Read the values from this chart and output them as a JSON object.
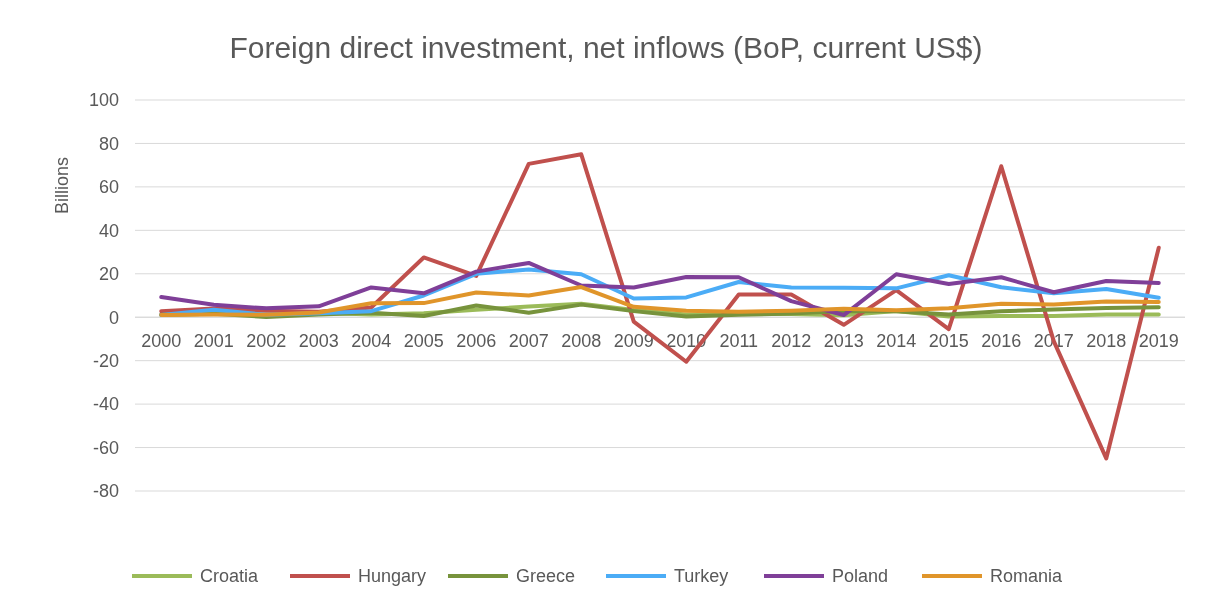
{
  "chart_data": {
    "type": "line",
    "title": "Foreign direct investment, net inflows (BoP, current US$)",
    "ylabel": "Billions",
    "categories": [
      "2000",
      "2001",
      "2002",
      "2003",
      "2004",
      "2005",
      "2006",
      "2007",
      "2008",
      "2009",
      "2010",
      "2011",
      "2012",
      "2013",
      "2014",
      "2015",
      "2016",
      "2017",
      "2018",
      "2019"
    ],
    "series": [
      {
        "name": "Croatia",
        "color": "#9bbb59",
        "values": [
          1.1,
          1.6,
          1.1,
          2.1,
          1.3,
          1.8,
          3.4,
          4.9,
          6.2,
          3.3,
          1.3,
          1.5,
          1.5,
          0.9,
          2.9,
          0.3,
          0.6,
          0.6,
          1.2,
          1.3
        ]
      },
      {
        "name": "Hungary",
        "color": "#c0504d",
        "values": [
          2.8,
          4,
          3,
          2.5,
          4.5,
          27.5,
          19,
          70.6,
          75,
          -2,
          -20.5,
          10.5,
          10.5,
          -3.5,
          12.5,
          -5.5,
          69.5,
          -11,
          -65,
          32
        ]
      },
      {
        "name": "Greece",
        "color": "#77933c",
        "values": [
          1.1,
          1.6,
          0.1,
          1.3,
          2.1,
          0.6,
          5.4,
          2.1,
          5.8,
          2.8,
          0.3,
          1.1,
          1.7,
          2.9,
          2.7,
          1.3,
          2.7,
          3.6,
          4.3,
          4.6
        ]
      },
      {
        "name": "Turkey",
        "color": "#4bacf6",
        "values": [
          1,
          3.4,
          1.1,
          1.8,
          2.8,
          10,
          20,
          22,
          19.8,
          8.6,
          9.1,
          16.2,
          13.7,
          13.6,
          13.3,
          19.3,
          13.8,
          11,
          13,
          9
        ]
      },
      {
        "name": "Poland",
        "color": "#7f3f98",
        "values": [
          9.3,
          5.7,
          4.1,
          5,
          13.7,
          11,
          21,
          25,
          14.6,
          13.7,
          18.5,
          18.4,
          7.4,
          1,
          19.8,
          15.3,
          18.4,
          11.5,
          16.7,
          15.8
        ]
      },
      {
        "name": "Romania",
        "color": "#e0952a",
        "values": [
          1,
          1.2,
          1.1,
          2.2,
          6.4,
          6.5,
          11.4,
          10,
          13.9,
          4.8,
          3,
          2.5,
          3,
          3.9,
          3.2,
          4.1,
          6.2,
          5.9,
          7.2,
          7
        ]
      }
    ],
    "ylim": [
      -80,
      100
    ],
    "yticks": [
      -80,
      -60,
      -40,
      -20,
      0,
      20,
      40,
      60,
      80,
      100
    ],
    "grid": "y",
    "legend": "bottom",
    "marker": "none",
    "line_style": "solid"
  }
}
